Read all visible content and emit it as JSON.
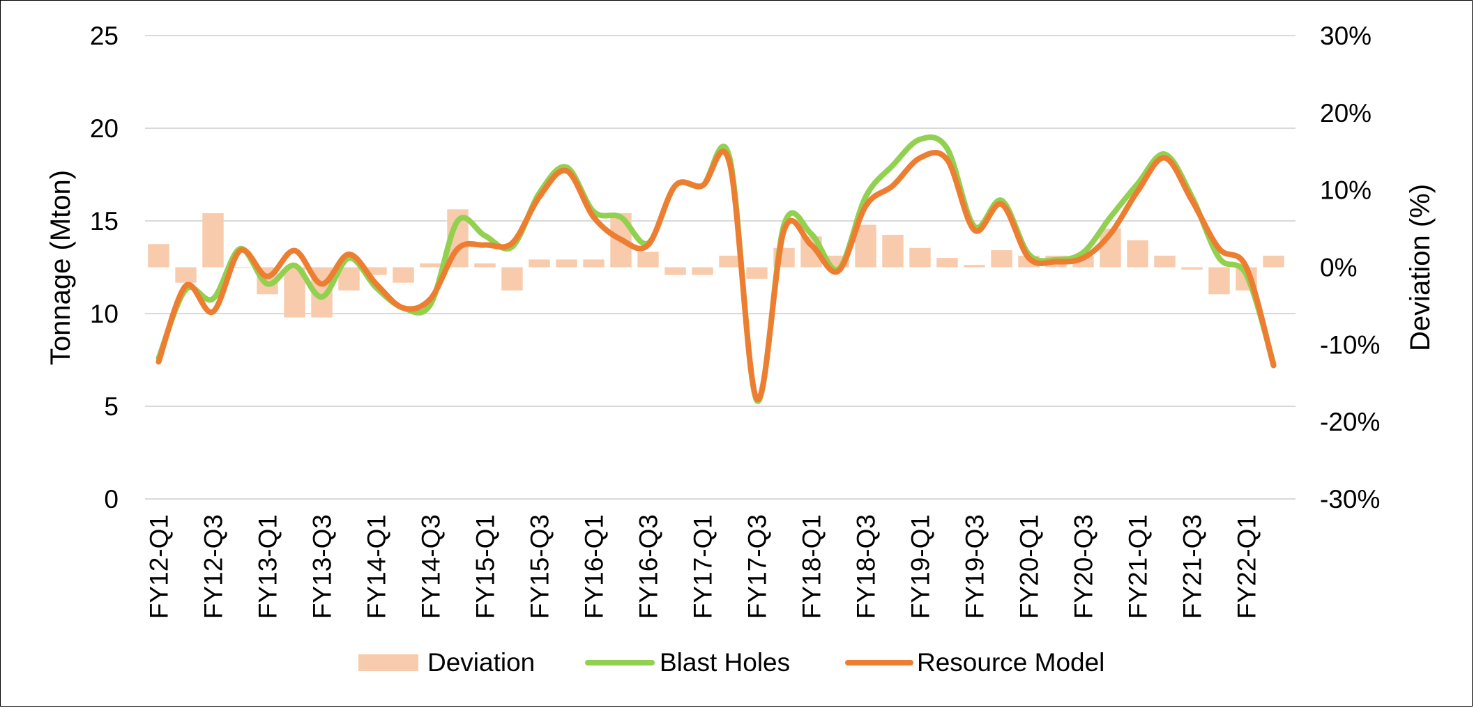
{
  "chart_data": {
    "type": "combo",
    "title": "",
    "ylabel_left": "Tonnage (Mton)",
    "ylabel_right": "Deviation (%)",
    "ylim_left": [
      0,
      25
    ],
    "yticks_left": [
      "0",
      "5",
      "10",
      "15",
      "20",
      "25"
    ],
    "ylim_right": [
      -30,
      30
    ],
    "yticks_right": [
      "-30%",
      "-20%",
      "-10%",
      "0%",
      "10%",
      "20%",
      "30%"
    ],
    "grid": "horizontal",
    "legend_position": "bottom",
    "categories": [
      "FY12-Q1",
      "FY12-Q2",
      "FY12-Q3",
      "FY12-Q4",
      "FY13-Q1",
      "FY13-Q2",
      "FY13-Q3",
      "FY13-Q4",
      "FY14-Q1",
      "FY14-Q2",
      "FY14-Q3",
      "FY14-Q4",
      "FY15-Q1",
      "FY15-Q2",
      "FY15-Q3",
      "FY15-Q4",
      "FY16-Q1",
      "FY16-Q2",
      "FY16-Q3",
      "FY16-Q4",
      "FY17-Q1",
      "FY17-Q2",
      "FY17-Q3",
      "FY17-Q4",
      "FY18-Q1",
      "FY18-Q2",
      "FY18-Q3",
      "FY18-Q4",
      "FY19-Q1",
      "FY19-Q2",
      "FY19-Q3",
      "FY19-Q4",
      "FY20-Q1",
      "FY20-Q2",
      "FY20-Q3",
      "FY20-Q4",
      "FY21-Q1",
      "FY21-Q2",
      "FY21-Q3",
      "FY21-Q4",
      "FY22-Q1",
      "FY22-Q2"
    ],
    "xtick_labels": [
      "FY12-Q1",
      "",
      "FY12-Q3",
      "",
      "FY13-Q1",
      "",
      "FY13-Q3",
      "",
      "FY14-Q1",
      "",
      "FY14-Q3",
      "",
      "FY15-Q1",
      "",
      "FY15-Q3",
      "",
      "FY16-Q1",
      "",
      "FY16-Q3",
      "",
      "FY17-Q1",
      "",
      "FY17-Q3",
      "",
      "FY18-Q1",
      "",
      "FY18-Q3",
      "",
      "FY19-Q1",
      "",
      "FY19-Q3",
      "",
      "FY20-Q1",
      "",
      "FY20-Q3",
      "",
      "FY21-Q1",
      "",
      "FY21-Q3",
      "",
      "FY22-Q1",
      ""
    ],
    "series": [
      {
        "name": "Deviation",
        "type": "bar",
        "axis": "right",
        "color": "#F8CBAD",
        "values": [
          3,
          -2,
          7,
          0,
          -3.5,
          -6.5,
          -6.5,
          -3,
          -1,
          -2,
          0.5,
          7.5,
          0.5,
          -3,
          1,
          1,
          1,
          7,
          2,
          -1,
          -1,
          1.5,
          -1.5,
          2.5,
          4,
          1.5,
          5.5,
          4.2,
          2.5,
          1.2,
          0.3,
          2.2,
          1.5,
          1.5,
          1.5,
          5,
          3.5,
          1.5,
          -0.3,
          -3.5,
          -3,
          1.5
        ]
      },
      {
        "name": "Blast Holes",
        "type": "line",
        "axis": "left",
        "color": "#92D050",
        "values": [
          7.6,
          11.3,
          10.8,
          13.5,
          11.6,
          12.6,
          10.9,
          13.0,
          11.4,
          10.3,
          10.5,
          15.0,
          14.2,
          13.6,
          16.5,
          17.9,
          15.5,
          15.2,
          13.8,
          16.9,
          16.9,
          18.4,
          5.3,
          14.8,
          14.3,
          12.4,
          16.3,
          18.0,
          19.4,
          18.9,
          14.7,
          16.1,
          13.2,
          12.9,
          13.3,
          15.2,
          17.0,
          18.6,
          16.3,
          13.0,
          12.1,
          7.3
        ]
      },
      {
        "name": "Resource Model",
        "type": "line",
        "axis": "left",
        "color": "#ED7D31",
        "values": [
          7.4,
          11.5,
          10.1,
          13.4,
          12.0,
          13.4,
          11.6,
          13.2,
          11.6,
          10.3,
          10.8,
          13.5,
          13.7,
          13.8,
          16.3,
          17.7,
          15.2,
          14.0,
          13.7,
          16.9,
          16.9,
          18.1,
          5.4,
          14.5,
          13.7,
          12.3,
          15.8,
          16.9,
          18.4,
          18.3,
          14.5,
          15.9,
          13.0,
          12.8,
          13.0,
          14.3,
          16.6,
          18.4,
          16.1,
          13.5,
          12.5,
          7.2
        ]
      }
    ]
  }
}
